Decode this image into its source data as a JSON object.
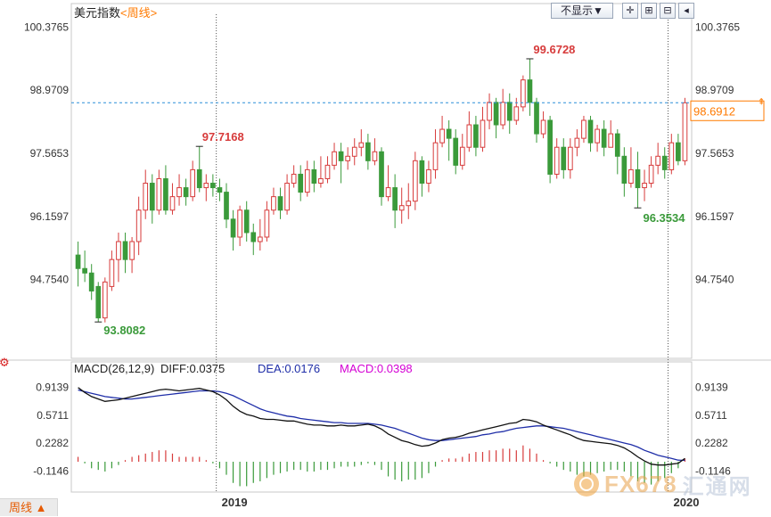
{
  "header": {
    "title": "美元指数",
    "period_link": "<周线>",
    "display_select": "不显示▼"
  },
  "period_button": "周线 ▲",
  "watermark": {
    "brand": "FX678",
    "chinese": "汇通网"
  },
  "colors": {
    "up": "#d73b3b",
    "down": "#3a9a3a",
    "diff_line": "#111111",
    "dea_line": "#1f2ea8",
    "macd_text": "#d400d4",
    "current_price": "#ff7a00",
    "dashed_line": "#2a8fd8"
  },
  "chart_data": [
    {
      "type": "candlestick",
      "title": "美元指数 <周线>",
      "ylim": [
        93.0,
        100.9
      ],
      "y_ticks": [
        "100.3765",
        "98.9709",
        "97.5653",
        "96.1597",
        "94.7540"
      ],
      "x_labels": [
        "2019",
        "2020"
      ],
      "annotations": [
        "93.8082",
        "97.7168",
        "99.6728",
        "96.3534"
      ],
      "current_price": "98.6912",
      "candles": [
        [
          95.3,
          95.0,
          95.6,
          94.6
        ],
        [
          95.0,
          94.9,
          95.4,
          94.7
        ],
        [
          94.9,
          94.5,
          95.1,
          94.3
        ],
        [
          94.6,
          93.9,
          94.7,
          93.81
        ],
        [
          93.9,
          94.7,
          94.8,
          93.8
        ],
        [
          94.6,
          95.2,
          95.4,
          94.5
        ],
        [
          95.2,
          95.6,
          95.8,
          94.7
        ],
        [
          95.6,
          95.2,
          95.8,
          94.9
        ],
        [
          95.2,
          95.6,
          95.7,
          94.9
        ],
        [
          95.6,
          96.3,
          96.6,
          95.3
        ],
        [
          96.3,
          96.9,
          97.2,
          96.1
        ],
        [
          96.9,
          96.3,
          97.1,
          96.0
        ],
        [
          96.3,
          97.0,
          97.2,
          96.2
        ],
        [
          97.0,
          96.3,
          97.3,
          96.2
        ],
        [
          96.3,
          96.6,
          96.9,
          96.2
        ],
        [
          96.6,
          96.8,
          97.1,
          96.4
        ],
        [
          96.8,
          96.6,
          97.0,
          96.4
        ],
        [
          96.6,
          97.2,
          97.4,
          96.5
        ],
        [
          97.2,
          96.8,
          97.72,
          96.7
        ],
        [
          96.8,
          96.9,
          97.1,
          96.5
        ],
        [
          96.9,
          96.8,
          97.1,
          96.6
        ],
        [
          96.8,
          96.7,
          97.0,
          96.5
        ],
        [
          96.7,
          96.1,
          96.9,
          95.9
        ],
        [
          96.1,
          95.7,
          96.3,
          95.4
        ],
        [
          95.7,
          96.3,
          96.4,
          95.5
        ],
        [
          96.3,
          95.8,
          96.5,
          95.6
        ],
        [
          95.8,
          95.6,
          96.0,
          95.3
        ],
        [
          95.6,
          95.7,
          96.1,
          95.4
        ],
        [
          95.7,
          96.3,
          96.5,
          95.6
        ],
        [
          96.3,
          96.6,
          96.8,
          96.2
        ],
        [
          96.6,
          96.3,
          96.8,
          96.1
        ],
        [
          96.3,
          96.9,
          97.1,
          96.2
        ],
        [
          96.9,
          97.1,
          97.3,
          96.8
        ],
        [
          97.1,
          96.7,
          97.3,
          96.5
        ],
        [
          96.7,
          97.2,
          97.4,
          96.6
        ],
        [
          97.2,
          96.9,
          97.4,
          96.7
        ],
        [
          96.9,
          97.0,
          97.5,
          96.8
        ],
        [
          97.0,
          97.3,
          97.5,
          96.9
        ],
        [
          97.3,
          97.6,
          97.8,
          97.2
        ],
        [
          97.6,
          97.4,
          97.8,
          96.9
        ],
        [
          97.4,
          97.5,
          97.7,
          97.2
        ],
        [
          97.5,
          97.7,
          97.9,
          97.3
        ],
        [
          97.7,
          97.8,
          98.1,
          97.5
        ],
        [
          97.8,
          97.4,
          98.0,
          97.2
        ],
        [
          97.4,
          97.6,
          97.9,
          97.3
        ],
        [
          97.6,
          96.6,
          97.7,
          96.4
        ],
        [
          96.6,
          96.8,
          97.3,
          96.5
        ],
        [
          96.8,
          96.3,
          97.1,
          95.9
        ],
        [
          96.3,
          96.4,
          96.8,
          96.0
        ],
        [
          96.4,
          96.5,
          96.9,
          96.1
        ],
        [
          96.5,
          97.4,
          97.6,
          96.3
        ],
        [
          97.4,
          96.9,
          97.5,
          96.6
        ],
        [
          96.9,
          97.2,
          97.4,
          96.7
        ],
        [
          97.2,
          97.8,
          98.1,
          97.0
        ],
        [
          97.8,
          98.1,
          98.4,
          97.7
        ],
        [
          98.1,
          97.9,
          98.3,
          97.4
        ],
        [
          97.9,
          97.3,
          98.1,
          97.1
        ],
        [
          97.3,
          97.7,
          98.0,
          97.2
        ],
        [
          97.7,
          98.2,
          98.5,
          97.6
        ],
        [
          98.2,
          97.7,
          98.4,
          97.5
        ],
        [
          97.7,
          98.3,
          98.6,
          97.6
        ],
        [
          98.3,
          98.7,
          98.9,
          98.1
        ],
        [
          98.7,
          98.2,
          98.8,
          97.9
        ],
        [
          98.2,
          98.7,
          99.0,
          98.1
        ],
        [
          98.7,
          98.3,
          98.9,
          98.0
        ],
        [
          98.3,
          98.6,
          98.8,
          98.2
        ],
        [
          98.6,
          99.2,
          99.3,
          98.5
        ],
        [
          99.2,
          98.7,
          99.67,
          98.4
        ],
        [
          98.7,
          98.0,
          98.8,
          97.8
        ],
        [
          98.0,
          98.3,
          98.5,
          97.9
        ],
        [
          98.3,
          97.1,
          98.4,
          96.9
        ],
        [
          97.1,
          97.7,
          97.9,
          97.0
        ],
        [
          97.7,
          97.2,
          97.9,
          97.0
        ],
        [
          97.2,
          97.7,
          97.9,
          97.0
        ],
        [
          97.7,
          97.9,
          98.1,
          97.5
        ],
        [
          97.9,
          98.3,
          98.4,
          97.8
        ],
        [
          98.3,
          97.8,
          98.4,
          97.6
        ],
        [
          97.8,
          98.1,
          98.2,
          97.6
        ],
        [
          98.1,
          97.7,
          98.3,
          97.5
        ],
        [
          97.7,
          98.0,
          98.3,
          97.7
        ],
        [
          98.0,
          97.5,
          98.1,
          97.1
        ],
        [
          97.5,
          96.9,
          97.7,
          96.6
        ],
        [
          96.9,
          97.2,
          97.7,
          96.8
        ],
        [
          97.2,
          96.8,
          97.6,
          96.35
        ],
        [
          96.8,
          96.9,
          97.2,
          96.5
        ],
        [
          96.9,
          97.3,
          97.5,
          96.8
        ],
        [
          97.3,
          97.5,
          97.8,
          97.1
        ],
        [
          97.5,
          97.2,
          97.7,
          97.0
        ],
        [
          97.2,
          97.8,
          98.0,
          97.1
        ],
        [
          97.8,
          97.4,
          98.0,
          97.3
        ],
        [
          97.4,
          98.69,
          98.8,
          97.3
        ]
      ]
    },
    {
      "type": "macd",
      "title": "MACD(26,12,9)",
      "readouts": {
        "diff": "DIFF:0.0375",
        "dea": "DEA:0.0176",
        "macd": "MACD:0.0398"
      },
      "ylim": [
        -0.35,
        1.05
      ],
      "y_ticks": [
        "0.9139",
        "0.5711",
        "0.2282",
        "-0.1146"
      ],
      "diff": [
        0.91,
        0.85,
        0.8,
        0.77,
        0.74,
        0.75,
        0.76,
        0.78,
        0.8,
        0.82,
        0.84,
        0.86,
        0.88,
        0.89,
        0.88,
        0.87,
        0.88,
        0.89,
        0.9,
        0.88,
        0.86,
        0.82,
        0.76,
        0.68,
        0.62,
        0.58,
        0.56,
        0.53,
        0.52,
        0.52,
        0.51,
        0.5,
        0.5,
        0.48,
        0.46,
        0.45,
        0.45,
        0.44,
        0.44,
        0.45,
        0.44,
        0.44,
        0.45,
        0.46,
        0.44,
        0.4,
        0.34,
        0.3,
        0.26,
        0.24,
        0.21,
        0.19,
        0.2,
        0.23,
        0.27,
        0.29,
        0.3,
        0.32,
        0.35,
        0.37,
        0.39,
        0.41,
        0.43,
        0.45,
        0.47,
        0.48,
        0.52,
        0.51,
        0.49,
        0.45,
        0.42,
        0.39,
        0.36,
        0.33,
        0.29,
        0.26,
        0.25,
        0.24,
        0.23,
        0.22,
        0.2,
        0.17,
        0.12,
        0.06,
        0.01,
        -0.03,
        -0.04,
        -0.04,
        -0.03,
        -0.02,
        0.04
      ],
      "dea": [
        0.88,
        0.86,
        0.84,
        0.82,
        0.8,
        0.79,
        0.78,
        0.77,
        0.77,
        0.78,
        0.79,
        0.8,
        0.81,
        0.82,
        0.83,
        0.84,
        0.85,
        0.86,
        0.87,
        0.87,
        0.87,
        0.86,
        0.84,
        0.81,
        0.77,
        0.73,
        0.69,
        0.65,
        0.62,
        0.6,
        0.58,
        0.56,
        0.55,
        0.53,
        0.52,
        0.51,
        0.5,
        0.49,
        0.48,
        0.48,
        0.47,
        0.47,
        0.47,
        0.47,
        0.46,
        0.45,
        0.43,
        0.41,
        0.38,
        0.35,
        0.32,
        0.29,
        0.27,
        0.26,
        0.26,
        0.27,
        0.28,
        0.29,
        0.3,
        0.31,
        0.33,
        0.34,
        0.36,
        0.37,
        0.39,
        0.41,
        0.42,
        0.43,
        0.44,
        0.44,
        0.43,
        0.42,
        0.41,
        0.39,
        0.37,
        0.35,
        0.33,
        0.31,
        0.29,
        0.27,
        0.25,
        0.23,
        0.21,
        0.18,
        0.14,
        0.11,
        0.08,
        0.06,
        0.04,
        0.02,
        0.018
      ],
      "hist": [
        0.06,
        -0.02,
        -0.08,
        -0.1,
        -0.12,
        -0.08,
        -0.04,
        0.02,
        0.06,
        0.08,
        0.1,
        0.12,
        0.14,
        0.14,
        0.1,
        0.06,
        0.06,
        0.06,
        0.06,
        0.02,
        -0.02,
        -0.08,
        -0.16,
        -0.26,
        -0.3,
        -0.3,
        -0.26,
        -0.24,
        -0.2,
        -0.16,
        -0.14,
        -0.12,
        -0.1,
        -0.1,
        -0.12,
        -0.12,
        -0.1,
        -0.1,
        -0.08,
        -0.06,
        -0.06,
        -0.06,
        -0.04,
        -0.02,
        -0.04,
        -0.1,
        -0.18,
        -0.22,
        -0.24,
        -0.22,
        -0.22,
        -0.2,
        -0.14,
        -0.06,
        0.02,
        0.04,
        0.04,
        0.06,
        0.1,
        0.12,
        0.12,
        0.14,
        0.14,
        0.16,
        0.16,
        0.14,
        0.2,
        0.16,
        0.1,
        0.02,
        -0.02,
        -0.06,
        -0.1,
        -0.12,
        -0.16,
        -0.18,
        -0.16,
        -0.14,
        -0.12,
        -0.1,
        -0.1,
        -0.12,
        -0.18,
        -0.24,
        -0.26,
        -0.28,
        -0.24,
        -0.2,
        -0.14,
        -0.08,
        0.04
      ]
    }
  ]
}
